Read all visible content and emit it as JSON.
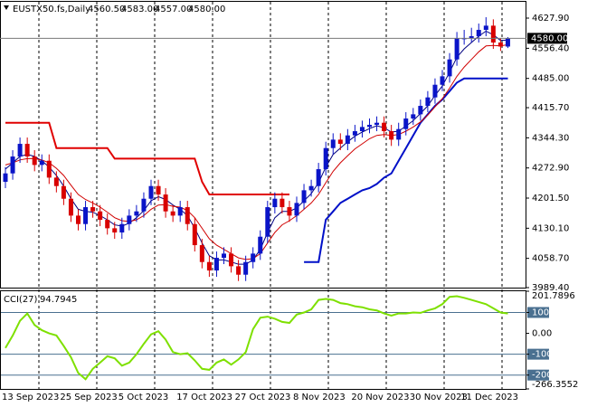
{
  "chart_data": [
    {
      "type": "candlestick",
      "title": "EUSTX50.fs,Daily",
      "last_ohlc": [
        {
          "value": 4560.5,
          "label": "4560.50"
        },
        {
          "value": 4583,
          "label": "4583.00"
        },
        {
          "value": 4557,
          "label": "4557.00"
        },
        {
          "value": 4580,
          "label": "4580.00"
        }
      ],
      "current_price": {
        "value": 4580,
        "label": "4580.00"
      },
      "categories": [
        "13 Sep 2023",
        null,
        null,
        null,
        null,
        null,
        null,
        null,
        "25 Sep 2023",
        null,
        null,
        null,
        null,
        null,
        null,
        null,
        "5 Oct 2023",
        null,
        null,
        null,
        null,
        null,
        null,
        null,
        "17 Oct 2023",
        null,
        null,
        null,
        null,
        null,
        null,
        null,
        "27 Oct 2023",
        null,
        null,
        null,
        null,
        null,
        null,
        null,
        "8 Nov 2023",
        null,
        null,
        null,
        null,
        null,
        null,
        null,
        "20 Nov 2023",
        null,
        null,
        null,
        null,
        null,
        null,
        null,
        "30 Nov 2023",
        null,
        null,
        null,
        null,
        null,
        null,
        "11 Dec 2023",
        null,
        null,
        null,
        null,
        null,
        null
      ],
      "open": [
        4240,
        4260,
        4300,
        4330,
        4300,
        4280,
        4290,
        4250,
        4230,
        4200,
        4160,
        4140,
        4180,
        4170,
        4150,
        4130,
        4120,
        4140,
        4160,
        4170,
        4200,
        4230,
        4210,
        4170,
        4160,
        4180,
        4140,
        4090,
        4050,
        4030,
        4060,
        4070,
        4040,
        4020,
        4050,
        4070,
        4110,
        4180,
        4200,
        4180,
        4160,
        4190,
        4220,
        4230,
        4270,
        4320,
        4340,
        4330,
        4350,
        4360,
        4370,
        4375,
        4380,
        4360,
        4340,
        4365,
        4390,
        4400,
        4420,
        4440,
        4470,
        4490,
        4530,
        4580,
        4580,
        4585,
        4600,
        4610,
        4570,
        4560.5
      ],
      "high": [
        4275,
        4315,
        4345,
        4345,
        4315,
        4305,
        4305,
        4265,
        4245,
        4215,
        4175,
        4195,
        4195,
        4185,
        4165,
        4145,
        4155,
        4175,
        4185,
        4215,
        4245,
        4245,
        4225,
        4185,
        4195,
        4195,
        4155,
        4105,
        4065,
        4075,
        4085,
        4085,
        4055,
        4065,
        4085,
        4125,
        4195,
        4215,
        4215,
        4195,
        4205,
        4235,
        4245,
        4285,
        4335,
        4355,
        4355,
        4365,
        4375,
        4385,
        4390,
        4395,
        4395,
        4375,
        4380,
        4405,
        4415,
        4435,
        4455,
        4485,
        4505,
        4545,
        4595,
        4600,
        4605,
        4615,
        4630,
        4625,
        4580,
        4583
      ],
      "low": [
        4225,
        4245,
        4285,
        4285,
        4265,
        4265,
        4235,
        4215,
        4185,
        4145,
        4125,
        4125,
        4155,
        4135,
        4115,
        4105,
        4105,
        4125,
        4145,
        4155,
        4185,
        4195,
        4155,
        4145,
        4145,
        4125,
        4075,
        4035,
        4015,
        4015,
        4045,
        4025,
        4005,
        4005,
        4035,
        4055,
        4095,
        4165,
        4165,
        4145,
        4145,
        4175,
        4205,
        4215,
        4255,
        4305,
        4315,
        4315,
        4335,
        4345,
        4355,
        4360,
        4345,
        4325,
        4325,
        4350,
        4375,
        4385,
        4405,
        4425,
        4455,
        4475,
        4515,
        4565,
        4570,
        4570,
        4585,
        4555,
        4550,
        4557
      ],
      "close": [
        4260,
        4300,
        4330,
        4300,
        4280,
        4290,
        4250,
        4230,
        4200,
        4160,
        4140,
        4180,
        4170,
        4150,
        4130,
        4120,
        4140,
        4160,
        4170,
        4200,
        4230,
        4210,
        4170,
        4160,
        4180,
        4140,
        4090,
        4050,
        4030,
        4060,
        4070,
        4040,
        4020,
        4050,
        4070,
        4110,
        4180,
        4200,
        4180,
        4160,
        4190,
        4220,
        4230,
        4270,
        4320,
        4340,
        4330,
        4350,
        4360,
        4370,
        4375,
        4380,
        4360,
        4340,
        4365,
        4390,
        4400,
        4420,
        4440,
        4470,
        4490,
        4530,
        4580,
        4580,
        4585,
        4600,
        4610,
        4570,
        4560.5,
        4580
      ],
      "up_color": "#0a14c8",
      "down_color": "#d80000",
      "series": [
        {
          "color": "#e00000",
          "values": [
            4380,
            4380,
            4380,
            4380,
            4380,
            4380,
            4380,
            4320,
            4320,
            4320,
            4320,
            4320,
            4320,
            4320,
            4320,
            4295,
            4295,
            4295,
            4295,
            4295,
            4295,
            4295,
            4295,
            4295,
            4295,
            4295,
            4295,
            4240,
            4210,
            4210,
            4210,
            4210,
            4210,
            4210,
            4210,
            4210,
            4210,
            4210,
            4210,
            4210,
            null,
            null,
            null,
            null,
            null,
            null,
            null,
            null,
            null,
            null,
            null,
            null,
            null,
            null,
            null,
            null,
            null,
            null,
            null,
            null,
            null,
            null,
            null,
            null,
            null,
            null,
            null,
            null,
            null,
            null
          ]
        },
        {
          "color": "#0010c8",
          "values": [
            null,
            null,
            null,
            null,
            null,
            null,
            null,
            null,
            null,
            null,
            null,
            null,
            null,
            null,
            null,
            null,
            null,
            null,
            null,
            null,
            null,
            null,
            null,
            null,
            null,
            null,
            null,
            null,
            null,
            null,
            null,
            null,
            null,
            null,
            null,
            null,
            null,
            null,
            null,
            null,
            null,
            4050,
            4050,
            4050,
            4150,
            4170,
            4190,
            4200,
            4210,
            4220,
            4225,
            4235,
            4250,
            4260,
            4290,
            4320,
            4350,
            4380,
            4400,
            4420,
            4435,
            4455,
            4475,
            4485,
            4485,
            4485,
            4485,
            4485,
            4485,
            4485
          ]
        },
        {
          "color": "#000080",
          "values": [
            4270,
            4285,
            4300,
            4305,
            4300,
            4290,
            4275,
            4255,
            4230,
            4200,
            4175,
            4170,
            4168,
            4160,
            4150,
            4138,
            4135,
            4142,
            4155,
            4172,
            4195,
            4205,
            4198,
            4185,
            4175,
            4160,
            4130,
            4095,
            4065,
            4055,
            4055,
            4050,
            4045,
            4045,
            4055,
            4080,
            4120,
            4155,
            4170,
            4170,
            4178,
            4195,
            4212,
            4238,
            4275,
            4305,
            4320,
            4335,
            4348,
            4358,
            4366,
            4373,
            4368,
            4358,
            4360,
            4372,
            4385,
            4402,
            4420,
            4445,
            4467,
            4500,
            4535,
            4555,
            4570,
            4585,
            4597,
            4588,
            4575,
            4576
          ]
        },
        {
          "color": "#d00000",
          "values": [
            4280,
            4285,
            4292,
            4295,
            4295,
            4292,
            4285,
            4272,
            4255,
            4232,
            4210,
            4198,
            4190,
            4180,
            4168,
            4155,
            4148,
            4146,
            4150,
            4160,
            4175,
            4185,
            4186,
            4182,
            4180,
            4172,
            4155,
            4130,
            4105,
            4090,
            4080,
            4070,
            4060,
            4056,
            4058,
            4070,
            4095,
            4120,
            4138,
            4148,
            4160,
            4175,
            4190,
            4210,
            4238,
            4265,
            4285,
            4302,
            4318,
            4330,
            4342,
            4350,
            4352,
            4350,
            4352,
            4360,
            4370,
            4382,
            4398,
            4418,
            4437,
            4462,
            4490,
            4512,
            4530,
            4548,
            4562,
            4563,
            4562,
            4565
          ]
        }
      ],
      "ylim": [
        3989.4,
        4666.5
      ],
      "yticks": [
        {
          "value": 4627.9,
          "label": "4627.90"
        },
        {
          "value": 4556.4,
          "label": "4556.40"
        },
        {
          "value": 4485,
          "label": "4485.00"
        },
        {
          "value": 4415.7,
          "label": "4415.70"
        },
        {
          "value": 4344.3,
          "label": "4344.30"
        },
        {
          "value": 4272.9,
          "label": "4272.90"
        },
        {
          "value": 4201.5,
          "label": "4201.50"
        },
        {
          "value": 4130.1,
          "label": "4130.10"
        },
        {
          "value": 4058.7,
          "label": "4058.70"
        },
        {
          "value": 3989.4,
          "label": "3989.40"
        }
      ],
      "grid": true
    },
    {
      "type": "line",
      "title": "CCI(27)",
      "current_value": 94.7945,
      "series": [
        {
          "color": "#7ee000",
          "values": [
            -70,
            -10,
            60,
            95,
            40,
            15,
            0,
            -10,
            -60,
            -115,
            -190,
            -220,
            -170,
            -140,
            -110,
            -120,
            -155,
            -140,
            -100,
            -50,
            -5,
            10,
            -30,
            -90,
            -100,
            -95,
            -130,
            -170,
            -175,
            -140,
            -125,
            -150,
            -125,
            -90,
            20,
            75,
            80,
            70,
            55,
            50,
            90,
            100,
            115,
            160,
            165,
            160,
            145,
            140,
            130,
            125,
            115,
            110,
            95,
            85,
            95,
            95,
            100,
            98,
            110,
            120,
            140,
            175,
            178,
            170,
            160,
            150,
            140,
            120,
            100,
            95
          ]
        }
      ],
      "levels": [
        100,
        -100,
        -200
      ],
      "level_color": "#4a7090",
      "ylim": [
        -266.3552,
        201.7896
      ],
      "yticks": [
        201.7896,
        100,
        {
          "value": 0,
          "label": "0.00"
        },
        -100,
        -200,
        -266.3552
      ]
    }
  ]
}
